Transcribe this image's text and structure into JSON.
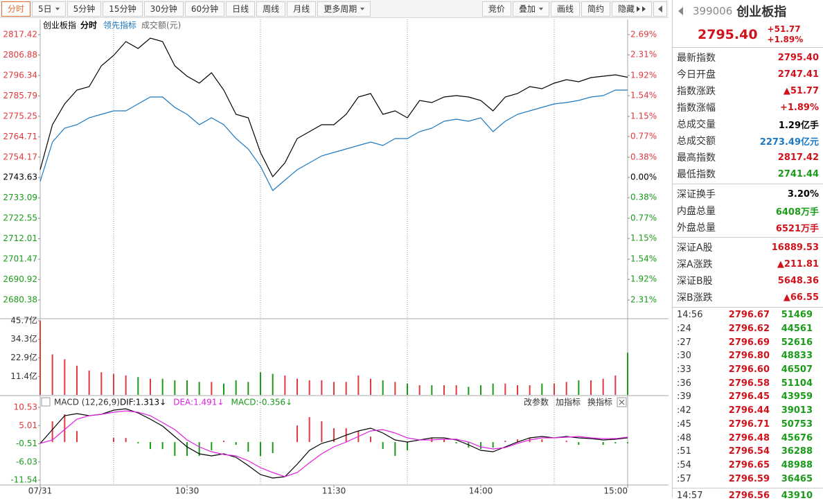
{
  "toolbar": {
    "left": [
      {
        "label": "分时",
        "active": true
      },
      {
        "label": "5日",
        "dropdown": true
      },
      {
        "label": "5分钟"
      },
      {
        "label": "15分钟"
      },
      {
        "label": "30分钟"
      },
      {
        "label": "60分钟"
      },
      {
        "label": "日线"
      },
      {
        "label": "周线"
      },
      {
        "label": "月线"
      },
      {
        "label": "更多周期",
        "dropdown": true
      }
    ],
    "right": [
      {
        "label": "竞价"
      },
      {
        "label": "叠加",
        "dropdown": true
      },
      {
        "label": "画线"
      },
      {
        "label": "简约"
      },
      {
        "label": "隐藏",
        "expand": true
      }
    ]
  },
  "time_axis": {
    "xlim": [
      0,
      240
    ],
    "x": [
      0,
      5,
      10,
      15,
      20,
      25,
      30,
      35,
      40,
      45,
      50,
      55,
      60,
      65,
      70,
      75,
      80,
      85,
      90,
      95,
      100,
      105,
      110,
      115,
      120,
      125,
      130,
      135,
      140,
      145,
      150,
      155,
      160,
      165,
      170,
      175,
      180,
      185,
      190,
      195,
      200,
      205,
      210,
      215,
      220,
      225,
      230,
      235,
      240
    ],
    "xticks": [
      {
        "value": 0,
        "label": "07/31"
      },
      {
        "value": 60,
        "label": "10:30"
      },
      {
        "value": 120,
        "label": "11:30"
      },
      {
        "value": 180,
        "label": "14:00"
      },
      {
        "value": 240,
        "label": "15:00"
      }
    ],
    "xgrid": [
      30,
      90,
      150,
      210
    ]
  },
  "price_chart": {
    "type": "line",
    "mode_label": "分时",
    "up_color": "#e0393e",
    "down_color": "#1a9b1a",
    "ylim": [
      2680.38,
      2817.42
    ],
    "yticks": [
      2817.42,
      2806.88,
      2796.34,
      2785.79,
      2775.25,
      2764.71,
      2754.17,
      2743.63,
      2733.09,
      2722.55,
      2712.01,
      2701.47,
      2690.92,
      2680.38
    ],
    "y2lim": [
      -2.31,
      2.69
    ],
    "y2ticks": [
      {
        "value": 2.69,
        "label": "2.69%"
      },
      {
        "value": 2.31,
        "label": "2.31%"
      },
      {
        "value": 1.92,
        "label": "1.92%"
      },
      {
        "value": 1.54,
        "label": "1.54%"
      },
      {
        "value": 1.15,
        "label": "1.15%"
      },
      {
        "value": 0.77,
        "label": "0.77%"
      },
      {
        "value": 0.38,
        "label": "0.38%"
      },
      {
        "value": 0,
        "label": "0.00%"
      },
      {
        "value": -0.38,
        "label": "0.38%"
      },
      {
        "value": -0.77,
        "label": "0.77%"
      },
      {
        "value": -1.15,
        "label": "1.15%"
      },
      {
        "value": -1.54,
        "label": "1.54%"
      },
      {
        "value": -1.92,
        "label": "1.92%"
      },
      {
        "value": -2.31,
        "label": "2.31%"
      }
    ],
    "series": [
      {
        "name": "创业板指",
        "color": "#000000",
        "values": [
          2747.65,
          2770.91,
          2781.64,
          2788.8,
          2790.59,
          2801.32,
          2806.69,
          2813.84,
          2810.26,
          2815.63,
          2813.84,
          2801.32,
          2795.95,
          2792.38,
          2797.74,
          2788.8,
          2776.28,
          2774.49,
          2756.6,
          2744.07,
          2751.23,
          2763.75,
          2767.33,
          2770.91,
          2770.91,
          2776.28,
          2785.22,
          2787.01,
          2776.28,
          2778.06,
          2774.49,
          2783.43,
          2782.36,
          2785.22,
          2785.94,
          2785.22,
          2783.43,
          2778.06,
          2785.22,
          2787.01,
          2790.59,
          2789.51,
          2792.38,
          2794.16,
          2793.09,
          2795.24,
          2795.95,
          2796.67,
          2795.4
        ]
      },
      {
        "name": "领先指标",
        "color": "#1a78c2",
        "values": [
          2741.57,
          2761.96,
          2769.12,
          2770.91,
          2774.49,
          2776.28,
          2778.06,
          2778.06,
          2781.64,
          2785.22,
          2785.22,
          2779.85,
          2776.28,
          2770.91,
          2774.49,
          2770.91,
          2763.75,
          2758.39,
          2749.44,
          2736.92,
          2742.29,
          2747.65,
          2751.23,
          2754.81,
          2756.6,
          2758.39,
          2760.17,
          2761.96,
          2760.17,
          2763.75,
          2763.75,
          2767.33,
          2769.12,
          2772.7,
          2773.77,
          2772.7,
          2774.49,
          2767.33,
          2772.7,
          2776.28,
          2778.06,
          2779.85,
          2781.64,
          2782.36,
          2783.43,
          2785.22,
          2785.94,
          2788.8,
          2788.8
        ]
      }
    ]
  },
  "volume_chart": {
    "type": "bar",
    "title": "成交额(元)",
    "ylim": [
      0,
      45.7
    ],
    "yticks": [
      {
        "value": 45.7,
        "label": "45.7亿"
      },
      {
        "value": 34.3,
        "label": "34.3亿"
      },
      {
        "value": 22.9,
        "label": "22.9亿"
      },
      {
        "value": 11.4,
        "label": "11.4亿"
      }
    ],
    "values": [
      45.7,
      25,
      22,
      18,
      15,
      14,
      13,
      12,
      11,
      10,
      10,
      9,
      9,
      8,
      8,
      7,
      9,
      8,
      14,
      13,
      12,
      10,
      9,
      9,
      8,
      8,
      12,
      10,
      9,
      8,
      7,
      6,
      6,
      6,
      6,
      5,
      6,
      7,
      7,
      6,
      6,
      7,
      7,
      8,
      9,
      9,
      10,
      12,
      26
    ]
  },
  "macd_chart": {
    "type": "macd",
    "title": "MACD (12,26,9)",
    "ylim": [
      -11.54,
      10.53
    ],
    "yticks": [
      10.53,
      5.01,
      -0.51,
      -6.03,
      -11.54
    ],
    "readouts": [
      {
        "text": "DIF:1.313↓",
        "color": "#000000"
      },
      {
        "text": "DEA:1.491↓",
        "color": "#e020e0"
      },
      {
        "text": "MACD:-0.356↓",
        "color": "#1a9b1a"
      }
    ],
    "actions": [
      "改参数",
      "加指标",
      "换指标"
    ],
    "series": [
      {
        "name": "DIF",
        "color": "#000000",
        "values": [
          -0.4,
          3.8,
          8.01,
          8.64,
          8.01,
          8.43,
          9.69,
          10.11,
          8.85,
          6.96,
          4.85,
          1.7,
          -1.45,
          -3.55,
          -4.18,
          -3.55,
          -4.6,
          -7.13,
          -9.86,
          -10.91,
          -10.49,
          -6.71,
          -2.5,
          -0.4,
          0.65,
          2.12,
          3.38,
          4.22,
          2.75,
          0.65,
          0.02,
          0.65,
          1.28,
          1.28,
          0.65,
          -0.82,
          -2.5,
          -2.92,
          -1.45,
          0.02,
          1.28,
          1.7,
          1.28,
          1.7,
          1.28,
          1.07,
          0.65,
          0.86,
          1.31
        ]
      },
      {
        "name": "DEA",
        "color": "#e020e0",
        "values": [
          -0.4,
          0.65,
          3.8,
          6.96,
          8.01,
          8.43,
          9.06,
          9.48,
          9.06,
          8.01,
          5.91,
          3.8,
          0.65,
          -1.45,
          -2.92,
          -3.76,
          -4.18,
          -5.66,
          -7.76,
          -9.23,
          -10.49,
          -9.23,
          -6.29,
          -3.55,
          -1.45,
          0.02,
          1.7,
          3.38,
          3.8,
          2.75,
          1.28,
          0.65,
          0.65,
          0.86,
          0.86,
          0.02,
          -1.45,
          -2.08,
          -1.66,
          -0.4,
          0.65,
          1.28,
          1.28,
          1.49,
          1.7,
          1.28,
          1.07,
          1.07,
          1.49
        ]
      }
    ],
    "histogram": [
      0,
      6.3,
      8.42,
      3.36,
      0,
      0,
      1.26,
      1.26,
      -0.42,
      -2.1,
      -2.12,
      -4.2,
      -4.2,
      -4.2,
      -2.52,
      0.42,
      -0.84,
      -2.94,
      -4.2,
      -3.36,
      0,
      5.04,
      7.58,
      6.3,
      4.2,
      4.2,
      3.36,
      1.68,
      -2.1,
      -4.2,
      -2.52,
      0,
      1.26,
      0.84,
      -0.42,
      -1.68,
      -2.1,
      -1.68,
      0.42,
      0.84,
      1.26,
      0.84,
      0,
      0.42,
      -0.84,
      0,
      -0.84,
      -0.42,
      -0.36
    ]
  },
  "quote": {
    "code": "399006",
    "name": "创业板指",
    "price": "2795.40",
    "change": "+51.77",
    "change_pct": "+1.89%",
    "groups": [
      [
        {
          "label": "最新指数",
          "value": "2795.40",
          "color": "#d0121b"
        },
        {
          "label": "今日开盘",
          "value": "2747.41",
          "color": "#d0121b"
        },
        {
          "label": "指数涨跌",
          "value": "▲51.77",
          "color": "#d0121b"
        },
        {
          "label": "指数涨幅",
          "value": "+1.89%",
          "color": "#d0121b"
        },
        {
          "label": "总成交量",
          "value": "1.29亿手",
          "color": "#000000"
        },
        {
          "label": "总成交额",
          "value": "2273.49亿元",
          "color": "#1a78c2"
        },
        {
          "label": "最高指数",
          "value": "2817.42",
          "color": "#d0121b"
        },
        {
          "label": "最低指数",
          "value": "2741.44",
          "color": "#1a9b1a"
        }
      ],
      [
        {
          "label": "深证换手",
          "value": "3.20%",
          "color": "#000000"
        },
        {
          "label": "内盘总量",
          "value": "6408万手",
          "color": "#1a9b1a"
        },
        {
          "label": "外盘总量",
          "value": "6521万手",
          "color": "#d0121b"
        }
      ],
      [
        {
          "label": "深证A股",
          "value": "16889.53",
          "color": "#d0121b"
        },
        {
          "label": "深A涨跌",
          "value": "▲211.81",
          "color": "#d0121b"
        },
        {
          "label": "深证B股",
          "value": "5648.36",
          "color": "#d0121b"
        },
        {
          "label": "深B涨跌",
          "value": "▲66.55",
          "color": "#d0121b"
        }
      ]
    ]
  },
  "trades": {
    "rows": [
      [
        "14:56",
        "2796.67",
        "51469"
      ],
      [
        ":24",
        "2796.62",
        "44561"
      ],
      [
        ":27",
        "2796.69",
        "52616"
      ],
      [
        ":30",
        "2796.80",
        "48833"
      ],
      [
        ":33",
        "2796.60",
        "46507"
      ],
      [
        ":36",
        "2796.58",
        "51104"
      ],
      [
        ":39",
        "2796.45",
        "43959"
      ],
      [
        ":42",
        "2796.44",
        "39013"
      ],
      [
        ":45",
        "2796.71",
        "50753"
      ],
      [
        ":48",
        "2796.48",
        "45676"
      ],
      [
        ":51",
        "2796.54",
        "36288"
      ],
      [
        ":54",
        "2796.65",
        "48988"
      ],
      [
        ":57",
        "2796.59",
        "36465"
      ]
    ],
    "last": [
      "14:57",
      "2796.56",
      "43910"
    ]
  }
}
